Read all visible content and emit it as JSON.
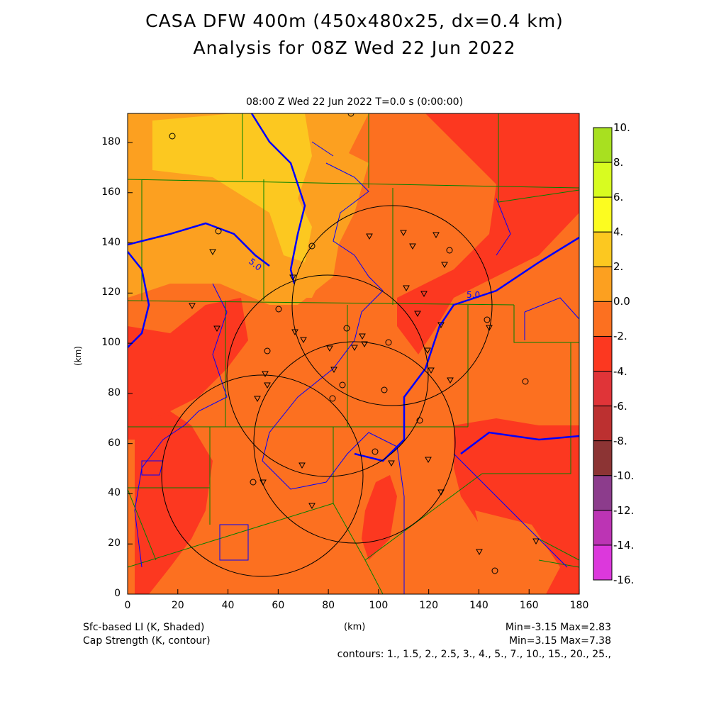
{
  "title": {
    "line1": "CASA DFW 400m (450x480x25, dx=0.4 km)",
    "line2": "Analysis for 08Z Wed 22 Jun 2022"
  },
  "subtitle": "08:00 Z Wed 22 Jun 2022   T=0.0 s (0:00:00)",
  "axes": {
    "xlabel": "(km)",
    "ylabel": "(km)",
    "xticks": [
      "0",
      "20",
      "40",
      "60",
      "80",
      "100",
      "120",
      "140",
      "160",
      "180"
    ],
    "yticks": [
      "0",
      "20",
      "40",
      "60",
      "80",
      "100",
      "120",
      "140",
      "160",
      "180"
    ]
  },
  "contour_label": "5.0",
  "colorbar": {
    "labels": [
      "10.",
      "8.",
      "6.",
      "4.",
      "2.",
      "0.0",
      "-2.",
      "-4.",
      "-6.",
      "-8.",
      "-10.",
      "-12.",
      "-14.",
      "-16."
    ],
    "colors": [
      "#a8e020",
      "#d8fc20",
      "#fcfc20",
      "#fcc820",
      "#fca020",
      "#fc7020",
      "#fc3820",
      "#e03438",
      "#bc3030",
      "#8c3434",
      "#8c3c8c",
      "#bc34b4",
      "#dc38dc"
    ]
  },
  "footer": {
    "field1": "Sfc-based LI (K, Shaded)",
    "field2": "Cap Strength (K, contour)",
    "units": "(km)",
    "range1": "Min=-3.15 Max=2.83",
    "range2": "Min=3.15 Max=7.38",
    "contours": "contours: 1., 1.5, 2., 2.5, 3., 4., 5., 7., 10., 15., 20., 25.,"
  }
}
